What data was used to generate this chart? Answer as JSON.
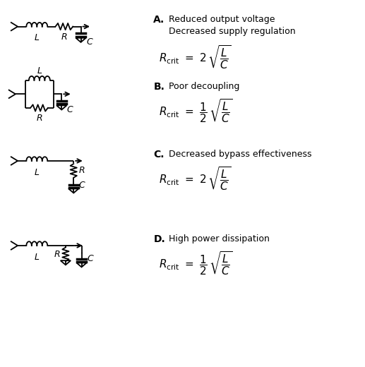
{
  "background_color": "#ffffff",
  "line_color": "#000000",
  "circuits": [
    {
      "label": "A",
      "desc1": "Reduced output voltage",
      "desc2": "Decreased supply regulation",
      "formula": "A"
    },
    {
      "label": "B",
      "desc1": "Poor decoupling",
      "desc2": "",
      "formula": "B"
    },
    {
      "label": "C",
      "desc1": "Decreased bypass effectiveness",
      "desc2": "",
      "formula": "A"
    },
    {
      "label": "D",
      "desc1": "High power dissipation",
      "desc2": "",
      "formula": "B"
    }
  ]
}
